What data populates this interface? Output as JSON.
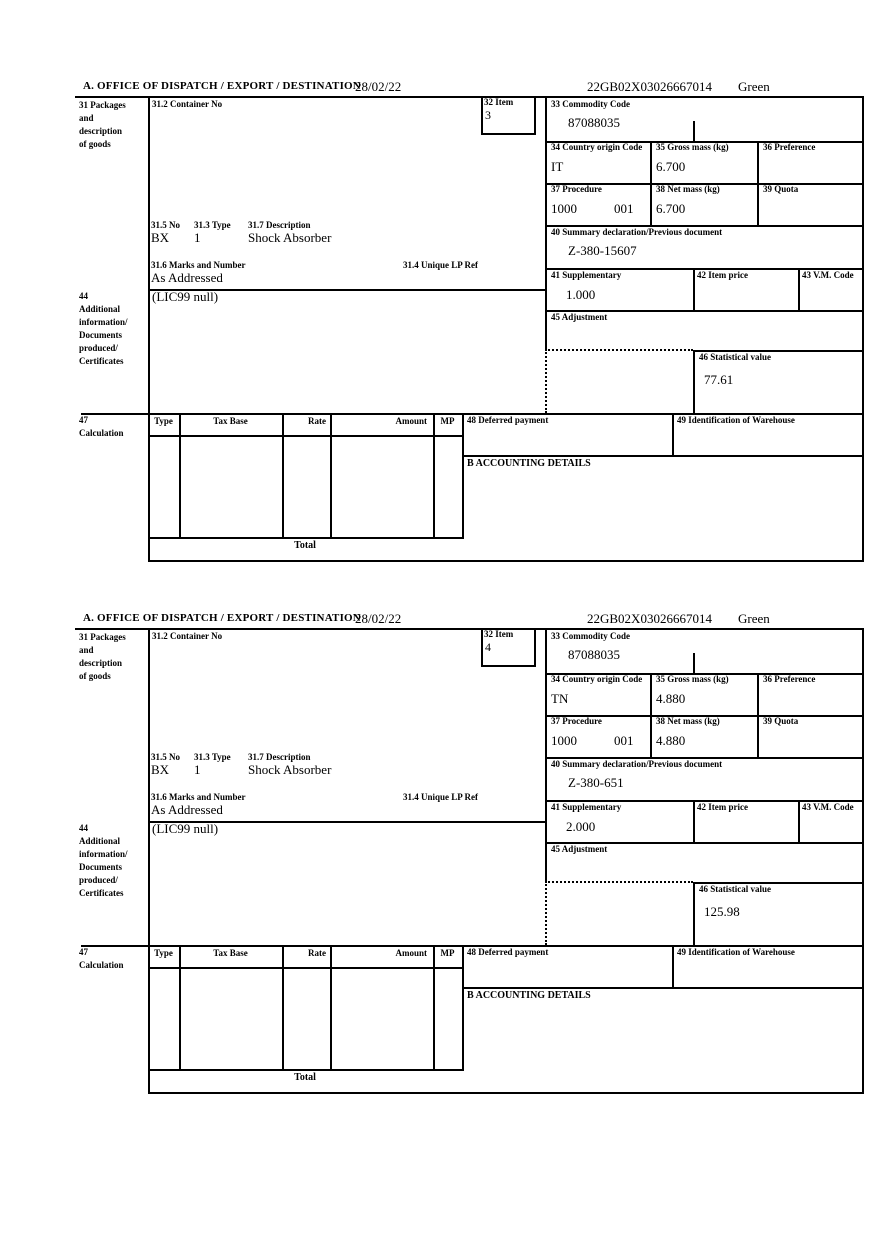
{
  "colors": {
    "ink": "#000000",
    "paper": "#ffffff"
  },
  "header": {
    "title": "A. OFFICE OF DISPATCH / EXPORT / DESTINATION",
    "date": "28/02/22",
    "reference": "22GB02X03026667014",
    "status": "Green"
  },
  "labels": {
    "box31_lines": [
      "31 Packages",
      "and",
      "description",
      "of goods"
    ],
    "container_no": "31.2 Container No",
    "item": "32 Item",
    "commodity": "33 Commodity Code",
    "country": "34 Country origin Code",
    "gross": "35 Gross mass (kg)",
    "preference": "36 Preference",
    "procedure": "37 Procedure",
    "net": "38 Net mass (kg)",
    "quota": "39 Quota",
    "pkg_no": "31.5 No",
    "pkg_type": "31.3 Type",
    "pkg_desc": "31.7 Description",
    "marks": "31.6 Marks and Number",
    "lp_ref": "31.4 Unique LP Ref",
    "summary": "40 Summary declaration/Previous document",
    "supplementary": "41 Supplementary",
    "item_price": "42 Item price",
    "vm_code": "43 V.M. Code",
    "box44_lines": [
      "44",
      "Additional",
      "information/",
      "Documents",
      "produced/",
      "Certificates"
    ],
    "adjustment": "45 Adjustment",
    "statistical": "46 Statistical value",
    "box47_lines": [
      "47",
      "Calculation"
    ],
    "tax_columns": [
      "Type",
      "Tax Base",
      "Rate",
      "Amount",
      "MP"
    ],
    "deferred": "48 Deferred payment",
    "warehouse": "49 Identification of Warehouse",
    "accounting": "B ACCOUNTING DETAILS",
    "total": "Total"
  },
  "sections": [
    {
      "item_no": "3",
      "commodity_code": "87088035",
      "country_origin": "IT",
      "gross_mass": "6.700",
      "procedure": "1000",
      "procedure_qualifier": "001",
      "net_mass": "6.700",
      "package_no": "BX",
      "package_type": "1",
      "description": "Shock Absorber",
      "marks_value": "As Addressed",
      "summary_declaration": "Z-380-15607",
      "supplementary_units": "1.000",
      "additional_info": "(LIC99 null)",
      "statistical_value": "77.61"
    },
    {
      "item_no": "4",
      "commodity_code": "87088035",
      "country_origin": "TN",
      "gross_mass": "4.880",
      "procedure": "1000",
      "procedure_qualifier": "001",
      "net_mass": "4.880",
      "package_no": "BX",
      "package_type": "1",
      "description": "Shock Absorber",
      "marks_value": "As Addressed",
      "summary_declaration": "Z-380-651",
      "supplementary_units": "2.000",
      "additional_info": "(LIC99 null)",
      "statistical_value": "125.98"
    }
  ]
}
